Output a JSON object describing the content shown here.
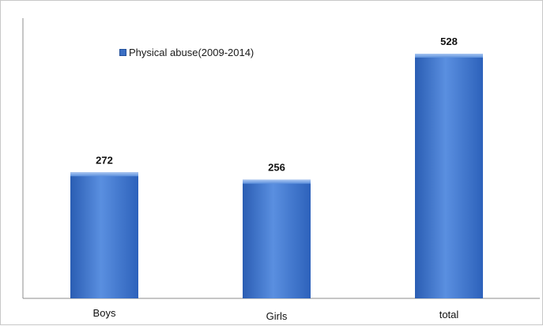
{
  "chart_data": {
    "type": "bar",
    "categories": [
      "Boys",
      "Girls",
      "total"
    ],
    "series": [
      {
        "name": "Physical abuse(2009-2014)",
        "values": [
          272,
          256,
          528
        ]
      }
    ],
    "data_labels": [
      "272",
      "256",
      "528"
    ],
    "legend_position": "top-left",
    "grid": false,
    "ylim": [
      0,
      600
    ],
    "colors": {
      "bar": "#3a72cc",
      "bar_light": "#6f9de6",
      "bar_dark": "#1f4f9e",
      "axis": "#8c8c8c"
    }
  }
}
